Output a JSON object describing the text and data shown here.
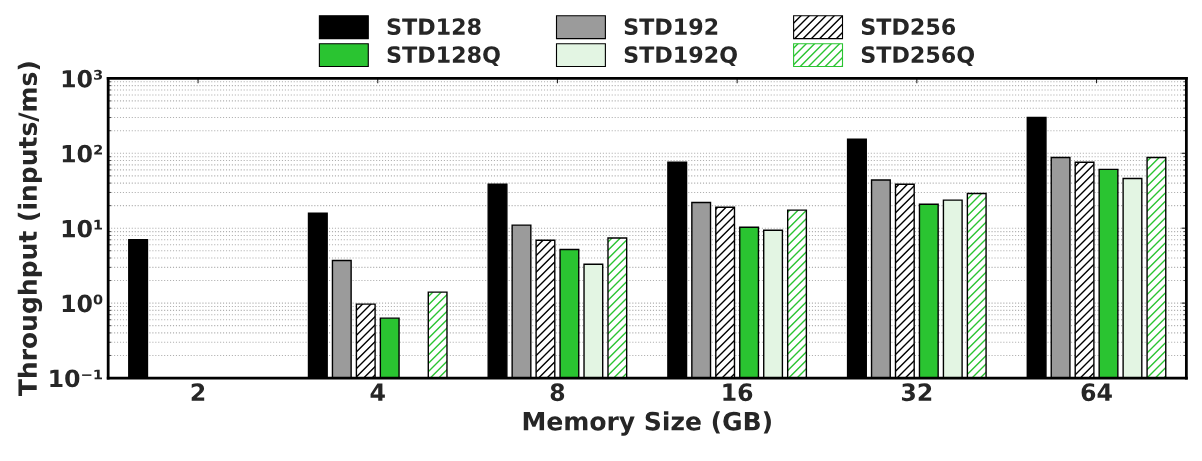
{
  "chart_data": {
    "type": "bar",
    "xlabel": "Memory Size (GB)",
    "ylabel": "Throughput (inputs/ms)",
    "categories": [
      "2",
      "4",
      "8",
      "16",
      "32",
      "64"
    ],
    "series": [
      {
        "name": "STD128",
        "color": "#000000",
        "values": [
          7,
          15.8,
          38.6,
          76,
          154,
          302
        ]
      },
      {
        "name": "STD192",
        "color": "#9b9b9b",
        "values": [
          null,
          3.7,
          11,
          22,
          44,
          88
        ]
      },
      {
        "name": "STD256",
        "color": "#ffffff",
        "values": [
          null,
          0.97,
          6.9,
          19,
          38.6,
          76
        ]
      },
      {
        "name": "STD128Q",
        "color": "#2ac431",
        "values": [
          null,
          0.63,
          5.2,
          10.3,
          20.9,
          61
        ]
      },
      {
        "name": "STD192Q",
        "color": "#e3f5e3",
        "values": [
          null,
          null,
          3.3,
          9.4,
          23.7,
          46
        ]
      },
      {
        "name": "STD256Q",
        "color": "#ffffff",
        "values": [
          null,
          1.4,
          7.4,
          17.4,
          29,
          88
        ]
      }
    ],
    "log": "y",
    "ylim": [
      0.1,
      1000
    ],
    "yticks": [
      {
        "value": 0.1,
        "label": "10⁻¹"
      },
      {
        "value": 1,
        "label": "10⁰"
      },
      {
        "value": 10,
        "label": "10¹"
      },
      {
        "value": 100,
        "label": "10²"
      },
      {
        "value": 1000,
        "label": "10³"
      }
    ],
    "grid": "y",
    "legend": "top"
  }
}
